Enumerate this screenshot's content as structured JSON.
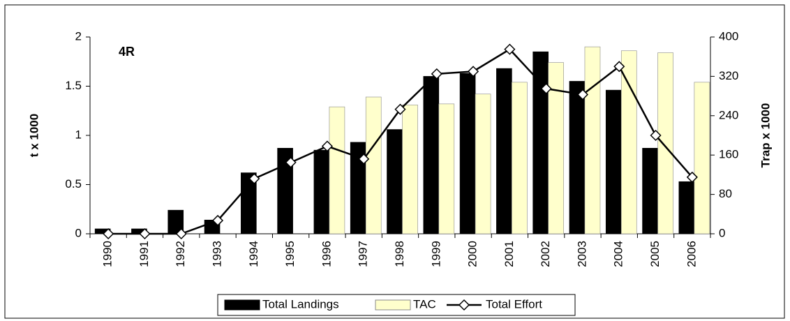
{
  "chart_data": {
    "type": "bar-line",
    "annotation": "4R",
    "ylabel": "t x 1000",
    "y2label": "Trap x 1000",
    "categories": [
      "1990",
      "1991",
      "1992",
      "1993",
      "1994",
      "1995",
      "1996",
      "1997",
      "1998",
      "1999",
      "2000",
      "2001",
      "2002",
      "2003",
      "2004",
      "2005",
      "2006"
    ],
    "series": [
      {
        "name": "Total Landings",
        "type": "bar",
        "color": "#000000",
        "values": [
          0.05,
          0.05,
          0.24,
          0.14,
          0.62,
          0.87,
          0.85,
          0.93,
          1.06,
          1.6,
          1.63,
          1.68,
          1.85,
          1.55,
          1.46,
          0.87,
          0.53
        ]
      },
      {
        "name": "TAC",
        "type": "bar",
        "color": "#ffffcc",
        "values": [
          null,
          null,
          null,
          null,
          null,
          null,
          1.29,
          1.39,
          1.31,
          1.32,
          1.42,
          1.54,
          1.74,
          1.9,
          1.86,
          1.84,
          1.54
        ]
      },
      {
        "name": "Total Effort",
        "type": "line",
        "axis": "y2",
        "color": "#000000",
        "values": [
          0,
          0,
          0,
          27,
          112,
          145,
          178,
          152,
          253,
          325,
          330,
          375,
          295,
          283,
          340,
          200,
          115
        ]
      }
    ],
    "ylim": [
      0,
      2
    ],
    "yticks": [
      0,
      0.5,
      1,
      1.5,
      2
    ],
    "y2lim": [
      0,
      400
    ],
    "y2ticks": [
      0,
      80,
      160,
      240,
      320,
      400
    ],
    "legend": "bottom"
  }
}
